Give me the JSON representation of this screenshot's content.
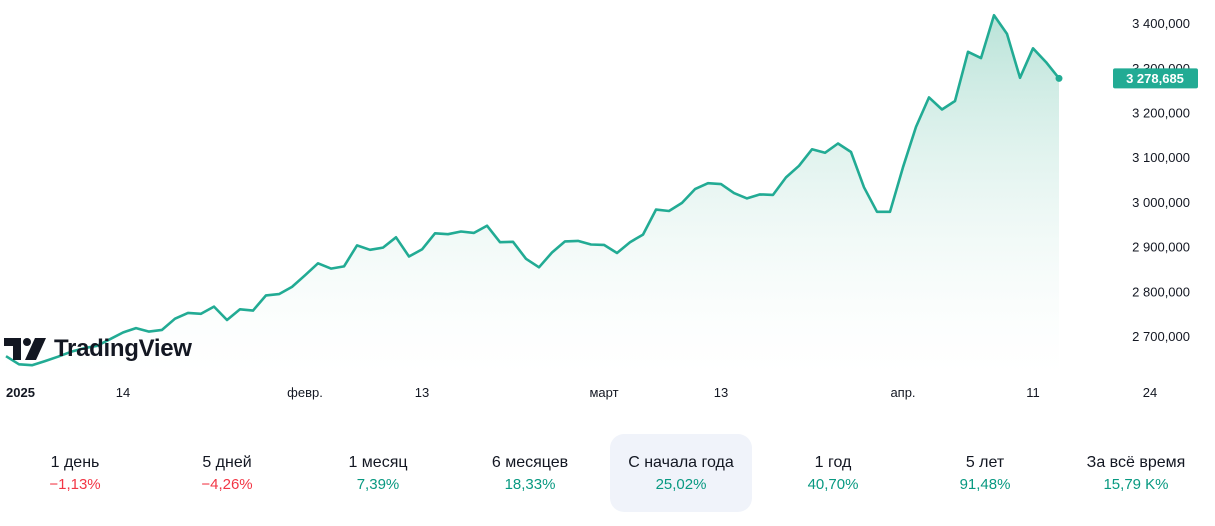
{
  "chart_data": {
    "type": "area",
    "series_color": "#22ab94",
    "fill_top_color": "#b2e0d4",
    "fill_bottom_color": "#ffffff",
    "last_value_label": "3 278,685",
    "yticks": [
      {
        "value": 3400000,
        "label": "3 400,000"
      },
      {
        "value": 3300000,
        "label": "3 300,000"
      },
      {
        "value": 3200000,
        "label": "3 200,000"
      },
      {
        "value": 3100000,
        "label": "3 100,000"
      },
      {
        "value": 3000000,
        "label": "3 000,000"
      },
      {
        "value": 2900000,
        "label": "2 900,000"
      },
      {
        "value": 2800000,
        "label": "2 800,000"
      },
      {
        "value": 2700000,
        "label": "2 700,000"
      }
    ],
    "xticks": [
      {
        "index": 0,
        "label": "2025",
        "bold": true
      },
      {
        "index": 9,
        "label": "14",
        "bold": false
      },
      {
        "index": 23,
        "label": "февр.",
        "bold": false
      },
      {
        "index": 32,
        "label": "13",
        "bold": false
      },
      {
        "index": 46,
        "label": "март",
        "bold": false
      },
      {
        "index": 55,
        "label": "13",
        "bold": false
      },
      {
        "index": 69,
        "label": "апр.",
        "bold": false
      },
      {
        "index": 79,
        "label": "11",
        "bold": false
      },
      {
        "index": 88,
        "label": "24",
        "bold": false
      }
    ],
    "values": [
      2657000,
      2639000,
      2637000,
      2646000,
      2656000,
      2667000,
      2675000,
      2680000,
      2695000,
      2710000,
      2720000,
      2712000,
      2716000,
      2741000,
      2754000,
      2752000,
      2768000,
      2738000,
      2762000,
      2759000,
      2793000,
      2796000,
      2812000,
      2838000,
      2865000,
      2853000,
      2858000,
      2905000,
      2895000,
      2900000,
      2923000,
      2880000,
      2896000,
      2932000,
      2930000,
      2936000,
      2933000,
      2949000,
      2912000,
      2913000,
      2875000,
      2856000,
      2889000,
      2914000,
      2915000,
      2907000,
      2906000,
      2888000,
      2912000,
      2929000,
      2985000,
      2982000,
      3000000,
      3031000,
      3044000,
      3042000,
      3022000,
      3010000,
      3019000,
      3018000,
      3057000,
      3083000,
      3120000,
      3112000,
      3133000,
      3114000,
      3035000,
      2980000,
      2980000,
      3080000,
      3170000,
      3236000,
      3209000,
      3228000,
      3338000,
      3324000,
      3420000,
      3378000,
      3280000,
      3346000,
      3315000,
      3278685
    ],
    "ylim": [
      2615000,
      3445000
    ]
  },
  "brand": {
    "name": "TradingView"
  },
  "periods": [
    {
      "label": "1 день",
      "change": "−1,13%",
      "trend": "neg",
      "active": false
    },
    {
      "label": "5 дней",
      "change": "−4,26%",
      "trend": "neg",
      "active": false
    },
    {
      "label": "1 месяц",
      "change": "7,39%",
      "trend": "pos",
      "active": false
    },
    {
      "label": "6 месяцев",
      "change": "18,33%",
      "trend": "pos",
      "active": false
    },
    {
      "label": "С начала года",
      "change": "25,02%",
      "trend": "pos",
      "active": true
    },
    {
      "label": "1 год",
      "change": "40,70%",
      "trend": "pos",
      "active": false
    },
    {
      "label": "5 лет",
      "change": "91,48%",
      "trend": "pos",
      "active": false
    },
    {
      "label": "За всё время",
      "change": "15,79 K%",
      "trend": "pos",
      "active": false
    }
  ]
}
